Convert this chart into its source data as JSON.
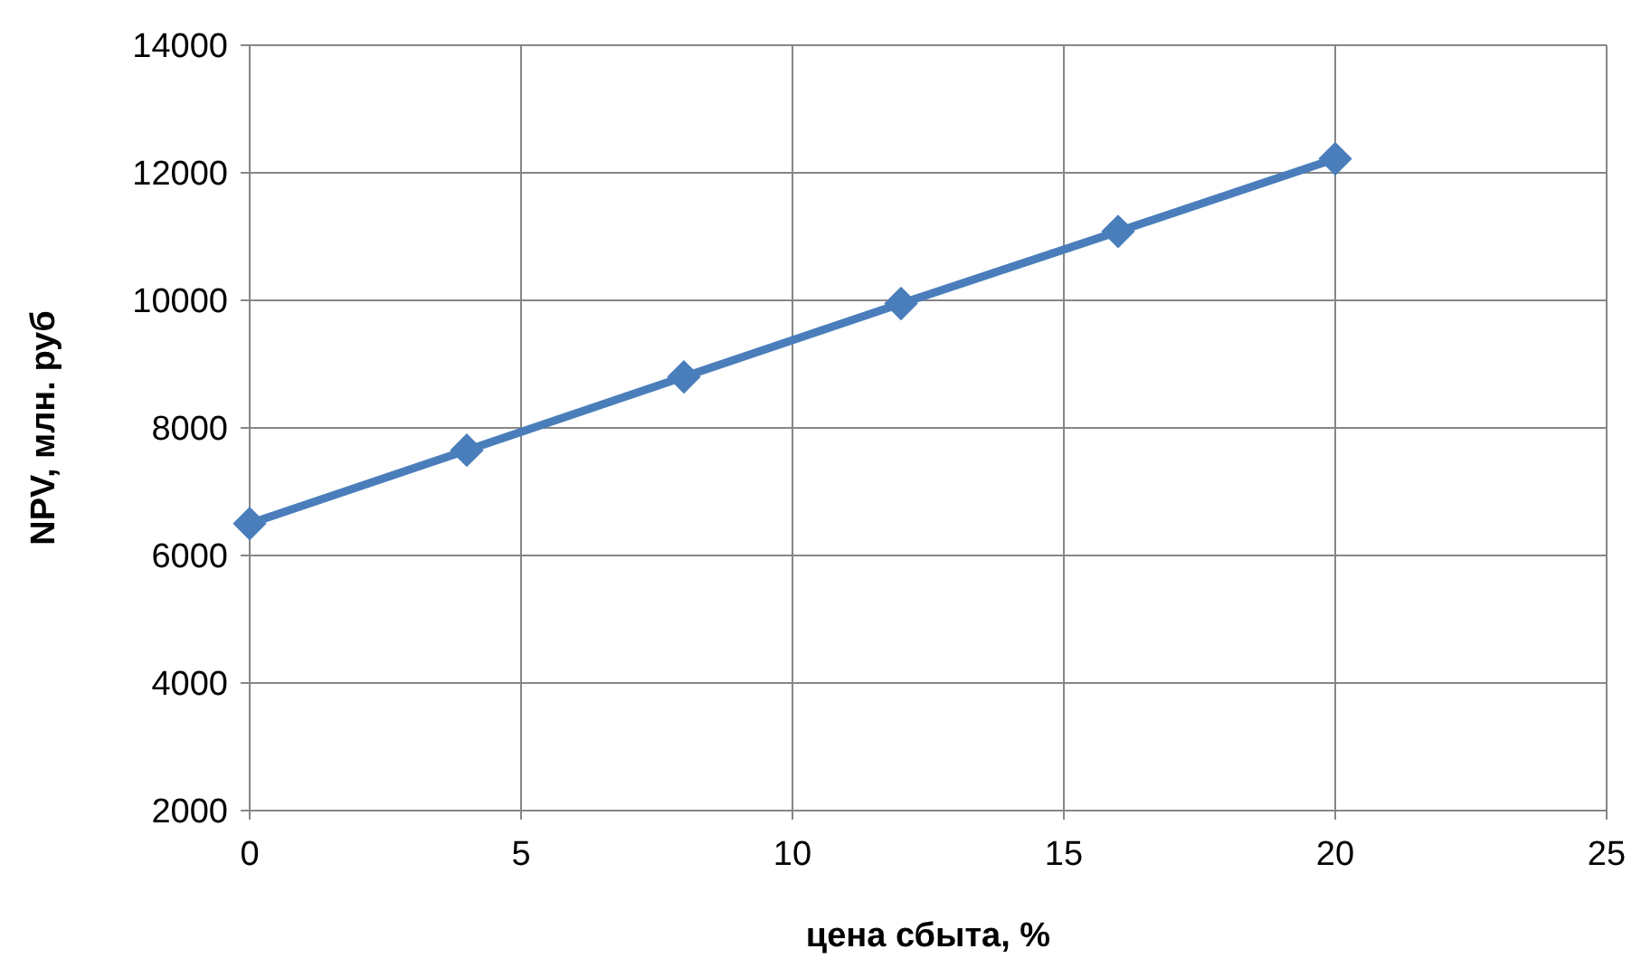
{
  "chart_data": {
    "type": "line",
    "xlabel": "цена сбыта, %",
    "ylabel": "NPV, млн. руб",
    "x": [
      0,
      4,
      8,
      12,
      16,
      20
    ],
    "series": [
      {
        "color": "#4a7ebb",
        "values": [
          6500,
          7650,
          8800,
          9950,
          11080,
          12220
        ]
      }
    ],
    "xlim": [
      0,
      25
    ],
    "xticks": [
      0,
      5,
      10,
      15,
      20,
      25
    ],
    "ylim": [
      2000,
      14000
    ],
    "yticks": [
      2000,
      4000,
      6000,
      8000,
      10000,
      12000,
      14000
    ],
    "grid": true,
    "marker": "diamond",
    "line_style": "solid"
  }
}
